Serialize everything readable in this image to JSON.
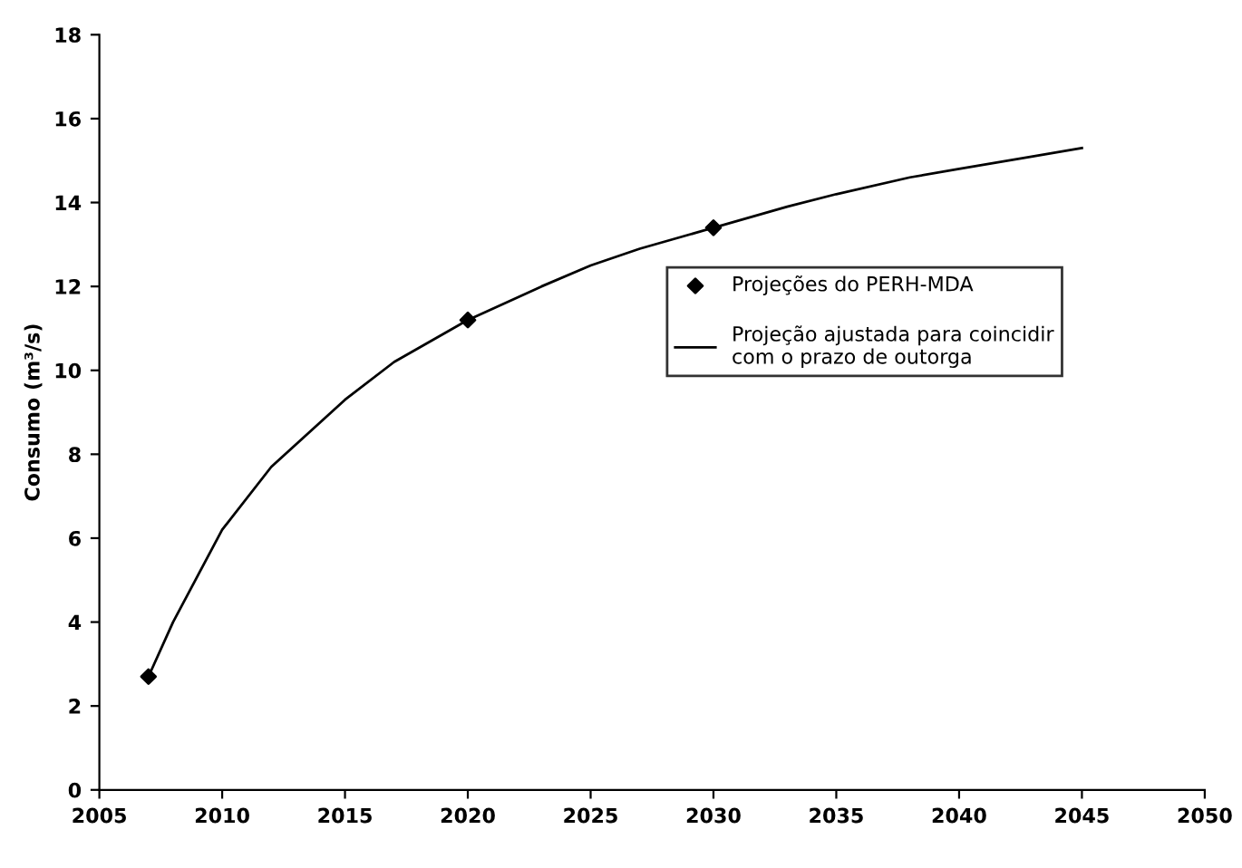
{
  "chart_data": {
    "type": "line",
    "ylabel": "Consumo (m³/s)",
    "xlim": [
      2005,
      2050
    ],
    "xticks": [
      2005,
      2010,
      2015,
      2020,
      2025,
      2030,
      2035,
      2040,
      2045,
      2050
    ],
    "ylim": [
      0,
      18
    ],
    "yticks": [
      0,
      2,
      4,
      6,
      8,
      10,
      12,
      14,
      16,
      18
    ],
    "grid": false,
    "legend": "right",
    "series": [
      {
        "name": "Projeções do PERH-MDA",
        "type": "scatter",
        "marker": "diamond",
        "color": "#000000",
        "x": [
          2007,
          2020,
          2030
        ],
        "values": [
          2.7,
          11.2,
          13.4
        ]
      },
      {
        "name": "Projeção ajustada para coincidir\ncom o prazo de outorga",
        "marker": "none",
        "line_style": "solid",
        "color": "#000000",
        "x": [
          2007,
          2008,
          2009,
          2010,
          2012,
          2015,
          2017,
          2020,
          2023,
          2025,
          2027,
          2030,
          2033,
          2035,
          2038,
          2040,
          2043,
          2045
        ],
        "values": [
          2.7,
          4.0,
          5.1,
          6.2,
          7.7,
          9.3,
          10.2,
          11.2,
          12.0,
          12.5,
          12.9,
          13.4,
          13.9,
          14.2,
          14.6,
          14.8,
          15.1,
          15.3
        ]
      }
    ]
  }
}
